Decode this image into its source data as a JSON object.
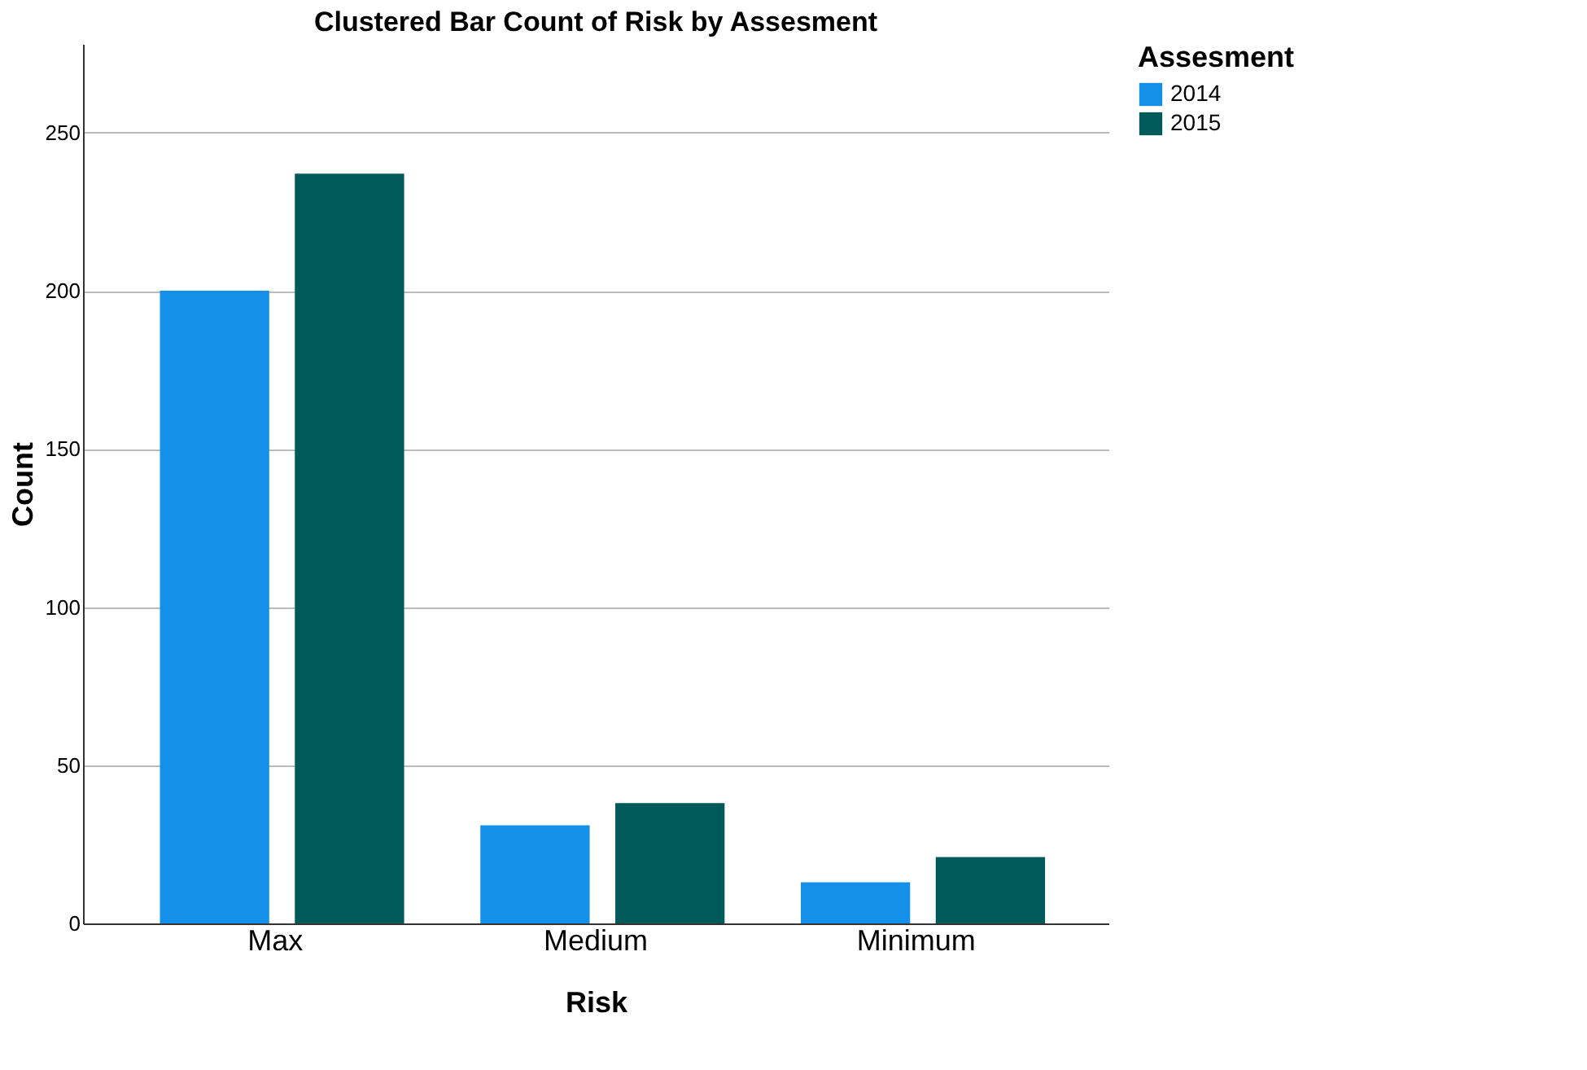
{
  "chart_data": {
    "type": "bar",
    "title": "Clustered Bar Count of Risk by Assesment",
    "xlabel": "Risk",
    "ylabel": "Count",
    "legend_title": "Assesment",
    "categories": [
      "Max",
      "Medium",
      "Minimum"
    ],
    "series": [
      {
        "name": "2014",
        "color": "#1490e8",
        "values": [
          200,
          31,
          13
        ]
      },
      {
        "name": "2015",
        "color": "#005a5a",
        "values": [
          237,
          38,
          21
        ]
      }
    ],
    "ylim": [
      0,
      278
    ],
    "yticks": [
      0,
      50,
      100,
      150,
      200,
      250
    ],
    "grid": "y",
    "legend": "top right"
  }
}
